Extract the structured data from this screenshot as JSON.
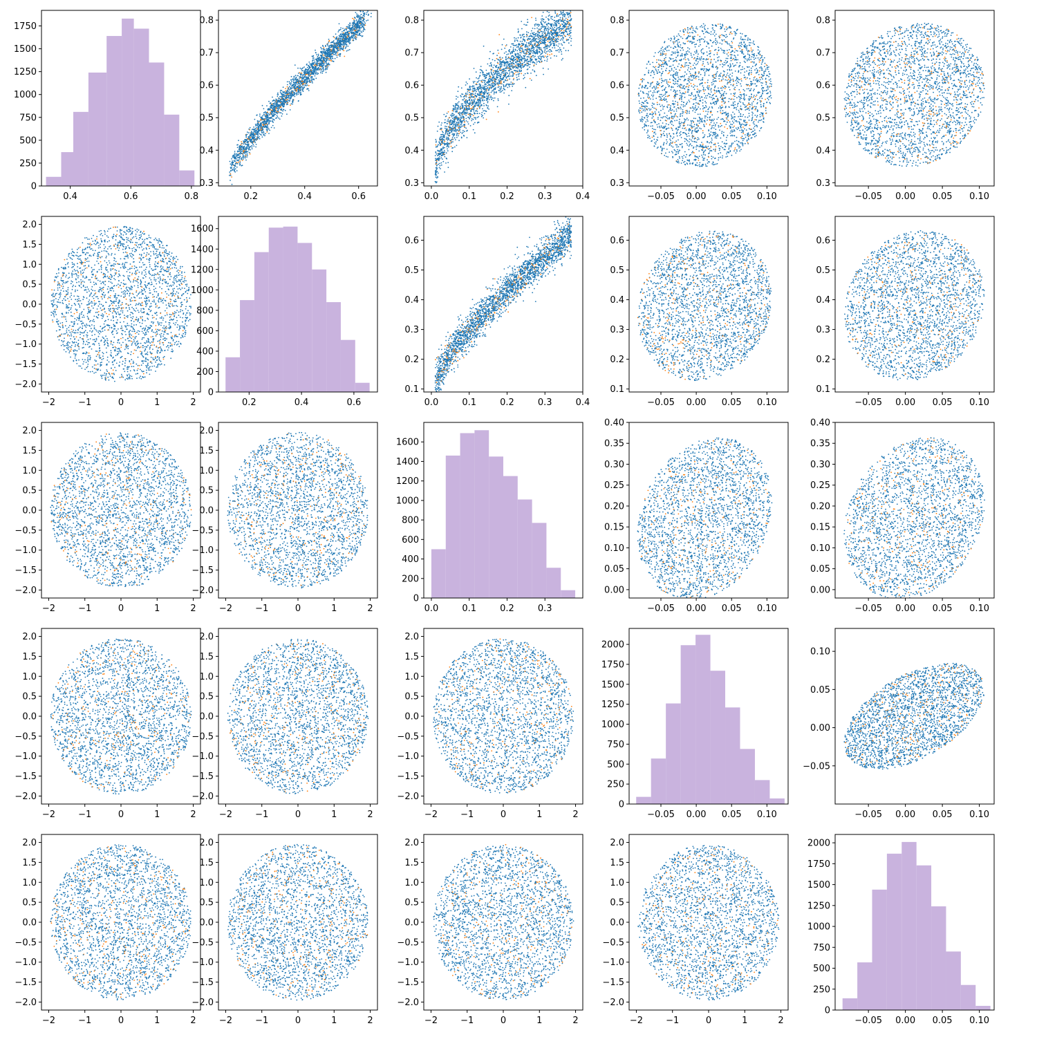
{
  "figure": {
    "colors": {
      "primary": "#1f77b4",
      "secondary": "#ff7f0e",
      "hist": "#c9b3de",
      "axes": "#000000"
    }
  },
  "chart_data": [
    {
      "type": "histogram",
      "row": 0,
      "col": 0,
      "xlim": [
        0.305,
        0.83
      ],
      "ylim": [
        0,
        1920
      ],
      "xticks": [
        0.4,
        0.6,
        0.8
      ],
      "xtick_labels": [
        "0.4",
        "0.6",
        "0.8"
      ],
      "yticks": [
        0,
        250,
        500,
        750,
        1000,
        1250,
        1500,
        1750
      ],
      "ytick_labels": [
        "0",
        "250",
        "500",
        "750",
        "1000",
        "1250",
        "1500",
        "1750"
      ],
      "bins": [
        0.32,
        0.37,
        0.41,
        0.46,
        0.52,
        0.57,
        0.61,
        0.66,
        0.71,
        0.76,
        0.81
      ],
      "values": [
        100,
        370,
        810,
        1240,
        1640,
        1830,
        1720,
        1350,
        780,
        170
      ]
    },
    {
      "type": "scatter",
      "row": 0,
      "col": 1,
      "xlim": [
        0.08,
        0.67
      ],
      "ylim": [
        0.29,
        0.83
      ],
      "xticks": [
        0.2,
        0.4,
        0.6
      ],
      "xtick_labels": [
        "0.2",
        "0.4",
        "0.6"
      ],
      "yticks": [
        0.3,
        0.4,
        0.5,
        0.6,
        0.7,
        0.8
      ],
      "ytick_labels": [
        "0.3",
        "0.4",
        "0.5",
        "0.6",
        "0.7",
        "0.8"
      ]
    },
    {
      "type": "scatter",
      "row": 0,
      "col": 2,
      "xlim": [
        -0.02,
        0.4
      ],
      "ylim": [
        0.29,
        0.83
      ],
      "xticks": [
        0.0,
        0.1,
        0.2,
        0.3,
        0.4
      ],
      "xtick_labels": [
        "0.0",
        "0.1",
        "0.2",
        "0.3",
        "0.4"
      ],
      "yticks": [
        0.3,
        0.4,
        0.5,
        0.6,
        0.7,
        0.8
      ],
      "ytick_labels": [
        "0.3",
        "0.4",
        "0.5",
        "0.6",
        "0.7",
        "0.8"
      ]
    },
    {
      "type": "scatter",
      "row": 0,
      "col": 3,
      "xlim": [
        -0.095,
        0.13
      ],
      "ylim": [
        0.29,
        0.83
      ],
      "xticks": [
        -0.05,
        0.0,
        0.05,
        0.1
      ],
      "xtick_labels": [
        "−0.05",
        "0.00",
        "0.05",
        "0.10"
      ],
      "yticks": [
        0.3,
        0.4,
        0.5,
        0.6,
        0.7,
        0.8
      ],
      "ytick_labels": [
        "0.3",
        "0.4",
        "0.5",
        "0.6",
        "0.7",
        "0.8"
      ]
    },
    {
      "type": "scatter",
      "row": 0,
      "col": 4,
      "xlim": [
        -0.095,
        0.12
      ],
      "ylim": [
        0.29,
        0.83
      ],
      "xticks": [
        -0.05,
        0.0,
        0.05,
        0.1
      ],
      "xtick_labels": [
        "−0.05",
        "0.00",
        "0.05",
        "0.10"
      ],
      "yticks": [
        0.3,
        0.4,
        0.5,
        0.6,
        0.7,
        0.8
      ],
      "ytick_labels": [
        "0.3",
        "0.4",
        "0.5",
        "0.6",
        "0.7",
        "0.8"
      ]
    },
    {
      "type": "scatter",
      "row": 1,
      "col": 0,
      "xlim": [
        -2.2,
        2.2
      ],
      "ylim": [
        -2.2,
        2.2
      ],
      "xticks": [
        -2,
        -1,
        0,
        1,
        2
      ],
      "xtick_labels": [
        "−2",
        "−1",
        "0",
        "1",
        "2"
      ],
      "yticks": [
        -2.0,
        -1.5,
        -1.0,
        -0.5,
        0.0,
        0.5,
        1.0,
        1.5,
        2.0
      ],
      "ytick_labels": [
        "−2.0",
        "−1.5",
        "−1.0",
        "−0.5",
        "0.0",
        "0.5",
        "1.0",
        "1.5",
        "2.0"
      ]
    },
    {
      "type": "histogram",
      "row": 1,
      "col": 1,
      "xlim": [
        0.083,
        0.69
      ],
      "ylim": [
        0,
        1720
      ],
      "xticks": [
        0.2,
        0.4,
        0.6
      ],
      "xtick_labels": [
        "0.2",
        "0.4",
        "0.6"
      ],
      "yticks": [
        0,
        200,
        400,
        600,
        800,
        1000,
        1200,
        1400,
        1600
      ],
      "ytick_labels": [
        "0",
        "200",
        "400",
        "600",
        "800",
        "1000",
        "1200",
        "1400",
        "1600"
      ],
      "bins": [
        0.11,
        0.165,
        0.22,
        0.275,
        0.33,
        0.385,
        0.44,
        0.495,
        0.55,
        0.605,
        0.66
      ],
      "values": [
        340,
        900,
        1370,
        1610,
        1620,
        1460,
        1200,
        880,
        510,
        90
      ]
    },
    {
      "type": "scatter",
      "row": 1,
      "col": 2,
      "xlim": [
        -0.02,
        0.4
      ],
      "ylim": [
        0.09,
        0.68
      ],
      "xticks": [
        0.0,
        0.1,
        0.2,
        0.3,
        0.4
      ],
      "xtick_labels": [
        "0.0",
        "0.1",
        "0.2",
        "0.3",
        "0.4"
      ],
      "yticks": [
        0.1,
        0.2,
        0.3,
        0.4,
        0.5,
        0.6
      ],
      "ytick_labels": [
        "0.1",
        "0.2",
        "0.3",
        "0.4",
        "0.5",
        "0.6"
      ]
    },
    {
      "type": "scatter",
      "row": 1,
      "col": 3,
      "xlim": [
        -0.095,
        0.13
      ],
      "ylim": [
        0.09,
        0.68
      ],
      "xticks": [
        -0.05,
        0.0,
        0.05,
        0.1
      ],
      "xtick_labels": [
        "−0.05",
        "0.00",
        "0.05",
        "0.10"
      ],
      "yticks": [
        0.1,
        0.2,
        0.3,
        0.4,
        0.5,
        0.6
      ],
      "ytick_labels": [
        "0.1",
        "0.2",
        "0.3",
        "0.4",
        "0.5",
        "0.6"
      ]
    },
    {
      "type": "scatter",
      "row": 1,
      "col": 4,
      "xlim": [
        -0.095,
        0.12
      ],
      "ylim": [
        0.09,
        0.68
      ],
      "xticks": [
        -0.05,
        0.0,
        0.05,
        0.1
      ],
      "xtick_labels": [
        "−0.05",
        "0.00",
        "0.05",
        "0.10"
      ],
      "yticks": [
        0.1,
        0.2,
        0.3,
        0.4,
        0.5,
        0.6
      ],
      "ytick_labels": [
        "0.1",
        "0.2",
        "0.3",
        "0.4",
        "0.5",
        "0.6"
      ]
    },
    {
      "type": "scatter",
      "row": 2,
      "col": 0,
      "xlim": [
        -2.2,
        2.2
      ],
      "ylim": [
        -2.2,
        2.2
      ],
      "xticks": [
        -2,
        -1,
        0,
        1,
        2
      ],
      "xtick_labels": [
        "−2",
        "−1",
        "0",
        "1",
        "2"
      ],
      "yticks": [
        -2.0,
        -1.5,
        -1.0,
        -0.5,
        0.0,
        0.5,
        1.0,
        1.5,
        2.0
      ],
      "ytick_labels": [
        "−2.0",
        "−1.5",
        "−1.0",
        "−0.5",
        "0.0",
        "0.5",
        "1.0",
        "1.5",
        "2.0"
      ]
    },
    {
      "type": "scatter",
      "row": 2,
      "col": 1,
      "xlim": [
        -2.2,
        2.2
      ],
      "ylim": [
        -2.2,
        2.2
      ],
      "xticks": [
        -2,
        -1,
        0,
        1,
        2
      ],
      "xtick_labels": [
        "−2",
        "−1",
        "0",
        "1",
        "2"
      ],
      "yticks": [
        -2.0,
        -1.5,
        -1.0,
        -0.5,
        0.0,
        0.5,
        1.0,
        1.5,
        2.0
      ],
      "ytick_labels": [
        "−2.0",
        "−1.5",
        "−1.0",
        "−0.5",
        "0.0",
        "0.5",
        "1.0",
        "1.5",
        "2.0"
      ]
    },
    {
      "type": "histogram",
      "row": 2,
      "col": 2,
      "xlim": [
        -0.02,
        0.4
      ],
      "ylim": [
        0,
        1800
      ],
      "xticks": [
        0.0,
        0.1,
        0.2,
        0.3
      ],
      "xtick_labels": [
        "0.0",
        "0.1",
        "0.2",
        "0.3"
      ],
      "yticks": [
        0,
        200,
        400,
        600,
        800,
        1000,
        1200,
        1400,
        1600
      ],
      "ytick_labels": [
        "0",
        "200",
        "400",
        "600",
        "800",
        "1000",
        "1200",
        "1400",
        "1600"
      ],
      "bins": [
        0.0,
        0.038,
        0.076,
        0.114,
        0.152,
        0.19,
        0.228,
        0.266,
        0.304,
        0.342,
        0.38
      ],
      "values": [
        500,
        1460,
        1690,
        1720,
        1450,
        1250,
        1010,
        770,
        310,
        80
      ]
    },
    {
      "type": "scatter",
      "row": 2,
      "col": 3,
      "xlim": [
        -0.095,
        0.13
      ],
      "ylim": [
        -0.02,
        0.4
      ],
      "xticks": [
        -0.05,
        0.0,
        0.05,
        0.1
      ],
      "xtick_labels": [
        "−0.05",
        "0.00",
        "0.05",
        "0.10"
      ],
      "yticks": [
        0.0,
        0.05,
        0.1,
        0.15,
        0.2,
        0.25,
        0.3,
        0.35,
        0.4
      ],
      "ytick_labels": [
        "0.00",
        "0.05",
        "0.10",
        "0.15",
        "0.20",
        "0.25",
        "0.30",
        "0.35",
        "0.40"
      ]
    },
    {
      "type": "scatter",
      "row": 2,
      "col": 4,
      "xlim": [
        -0.095,
        0.12
      ],
      "ylim": [
        -0.02,
        0.4
      ],
      "xticks": [
        -0.05,
        0.0,
        0.05,
        0.1
      ],
      "xtick_labels": [
        "−0.05",
        "0.00",
        "0.05",
        "0.10"
      ],
      "yticks": [
        0.0,
        0.05,
        0.1,
        0.15,
        0.2,
        0.25,
        0.3,
        0.35,
        0.4
      ],
      "ytick_labels": [
        "0.00",
        "0.05",
        "0.10",
        "0.15",
        "0.20",
        "0.25",
        "0.30",
        "0.35",
        "0.40"
      ]
    },
    {
      "type": "scatter",
      "row": 3,
      "col": 0,
      "xlim": [
        -2.2,
        2.2
      ],
      "ylim": [
        -2.2,
        2.2
      ],
      "xticks": [
        -2,
        -1,
        0,
        1,
        2
      ],
      "xtick_labels": [
        "−2",
        "−1",
        "0",
        "1",
        "2"
      ],
      "yticks": [
        -2.0,
        -1.5,
        -1.0,
        -0.5,
        0.0,
        0.5,
        1.0,
        1.5,
        2.0
      ],
      "ytick_labels": [
        "−2.0",
        "−1.5",
        "−1.0",
        "−0.5",
        "0.0",
        "0.5",
        "1.0",
        "1.5",
        "2.0"
      ]
    },
    {
      "type": "scatter",
      "row": 3,
      "col": 1,
      "xlim": [
        -2.2,
        2.2
      ],
      "ylim": [
        -2.2,
        2.2
      ],
      "xticks": [
        -2,
        -1,
        0,
        1,
        2
      ],
      "xtick_labels": [
        "−2",
        "−1",
        "0",
        "1",
        "2"
      ],
      "yticks": [
        -2.0,
        -1.5,
        -1.0,
        -0.5,
        0.0,
        0.5,
        1.0,
        1.5,
        2.0
      ],
      "ytick_labels": [
        "−2.0",
        "−1.5",
        "−1.0",
        "−0.5",
        "0.0",
        "0.5",
        "1.0",
        "1.5",
        "2.0"
      ]
    },
    {
      "type": "scatter",
      "row": 3,
      "col": 2,
      "xlim": [
        -2.2,
        2.2
      ],
      "ylim": [
        -2.2,
        2.2
      ],
      "xticks": [
        -2,
        -1,
        0,
        1,
        2
      ],
      "xtick_labels": [
        "−2",
        "−1",
        "0",
        "1",
        "2"
      ],
      "yticks": [
        -2.0,
        -1.5,
        -1.0,
        -0.5,
        0.0,
        0.5,
        1.0,
        1.5,
        2.0
      ],
      "ytick_labels": [
        "−2.0",
        "−1.5",
        "−1.0",
        "−0.5",
        "0.0",
        "0.5",
        "1.0",
        "1.5",
        "2.0"
      ]
    },
    {
      "type": "histogram",
      "row": 3,
      "col": 3,
      "xlim": [
        -0.095,
        0.13
      ],
      "ylim": [
        0,
        2200
      ],
      "xticks": [
        -0.05,
        0.0,
        0.05,
        0.1
      ],
      "xtick_labels": [
        "−0.05",
        "0.00",
        "0.05",
        "0.10"
      ],
      "yticks": [
        0,
        250,
        500,
        750,
        1000,
        1250,
        1500,
        1750,
        2000
      ],
      "ytick_labels": [
        "0",
        "250",
        "500",
        "750",
        "1000",
        "1250",
        "1500",
        "1750",
        "2000"
      ],
      "bins": [
        -0.085,
        -0.064,
        -0.043,
        -0.022,
        -0.001,
        0.02,
        0.041,
        0.062,
        0.083,
        0.104,
        0.125
      ],
      "values": [
        90,
        570,
        1260,
        1990,
        2120,
        1670,
        1210,
        690,
        300,
        70
      ]
    },
    {
      "type": "scatter",
      "row": 3,
      "col": 4,
      "xlim": [
        -0.095,
        0.12
      ],
      "ylim": [
        -0.1,
        0.13
      ],
      "xticks": [
        -0.05,
        0.0,
        0.05,
        0.1
      ],
      "xtick_labels": [
        "−0.05",
        "0.00",
        "0.05",
        "0.10"
      ],
      "yticks": [
        -0.05,
        0.0,
        0.05,
        0.1
      ],
      "ytick_labels": [
        "−0.05",
        "0.00",
        "0.05",
        "0.10"
      ]
    },
    {
      "type": "scatter",
      "row": 4,
      "col": 0,
      "xlim": [
        -2.2,
        2.2
      ],
      "ylim": [
        -2.2,
        2.2
      ],
      "xticks": [
        -2,
        -1,
        0,
        1,
        2
      ],
      "xtick_labels": [
        "−2",
        "−1",
        "0",
        "1",
        "2"
      ],
      "yticks": [
        -2.0,
        -1.5,
        -1.0,
        -0.5,
        0.0,
        0.5,
        1.0,
        1.5,
        2.0
      ],
      "ytick_labels": [
        "−2.0",
        "−1.5",
        "−1.0",
        "−0.5",
        "0.0",
        "0.5",
        "1.0",
        "1.5",
        "2.0"
      ]
    },
    {
      "type": "scatter",
      "row": 4,
      "col": 1,
      "xlim": [
        -2.2,
        2.2
      ],
      "ylim": [
        -2.2,
        2.2
      ],
      "xticks": [
        -2,
        -1,
        0,
        1,
        2
      ],
      "xtick_labels": [
        "−2",
        "−1",
        "0",
        "1",
        "2"
      ],
      "yticks": [
        -2.0,
        -1.5,
        -1.0,
        -0.5,
        0.0,
        0.5,
        1.0,
        1.5,
        2.0
      ],
      "ytick_labels": [
        "−2.0",
        "−1.5",
        "−1.0",
        "−0.5",
        "0.0",
        "0.5",
        "1.0",
        "1.5",
        "2.0"
      ]
    },
    {
      "type": "scatter",
      "row": 4,
      "col": 2,
      "xlim": [
        -2.2,
        2.2
      ],
      "ylim": [
        -2.2,
        2.2
      ],
      "xticks": [
        -2,
        -1,
        0,
        1,
        2
      ],
      "xtick_labels": [
        "−2",
        "−1",
        "0",
        "1",
        "2"
      ],
      "yticks": [
        -2.0,
        -1.5,
        -1.0,
        -0.5,
        0.0,
        0.5,
        1.0,
        1.5,
        2.0
      ],
      "ytick_labels": [
        "−2.0",
        "−1.5",
        "−1.0",
        "−0.5",
        "0.0",
        "0.5",
        "1.0",
        "1.5",
        "2.0"
      ]
    },
    {
      "type": "scatter",
      "row": 4,
      "col": 3,
      "xlim": [
        -2.2,
        2.2
      ],
      "ylim": [
        -2.2,
        2.2
      ],
      "xticks": [
        -2,
        -1,
        0,
        1,
        2
      ],
      "xtick_labels": [
        "−2",
        "−1",
        "0",
        "1",
        "2"
      ],
      "yticks": [
        -2.0,
        -1.5,
        -1.0,
        -0.5,
        0.0,
        0.5,
        1.0,
        1.5,
        2.0
      ],
      "ytick_labels": [
        "−2.0",
        "−1.5",
        "−1.0",
        "−0.5",
        "0.0",
        "0.5",
        "1.0",
        "1.5",
        "2.0"
      ]
    },
    {
      "type": "histogram",
      "row": 4,
      "col": 4,
      "xlim": [
        -0.095,
        0.12
      ],
      "ylim": [
        0,
        2100
      ],
      "xticks": [
        -0.05,
        0.0,
        0.05,
        0.1
      ],
      "xtick_labels": [
        "−0.05",
        "0.00",
        "0.05",
        "0.10"
      ],
      "yticks": [
        0,
        250,
        500,
        750,
        1000,
        1250,
        1500,
        1750,
        2000
      ],
      "ytick_labels": [
        "0",
        "250",
        "500",
        "750",
        "1000",
        "1250",
        "1500",
        "1750",
        "2000"
      ],
      "bins": [
        -0.085,
        -0.065,
        -0.045,
        -0.025,
        -0.005,
        0.015,
        0.035,
        0.055,
        0.075,
        0.095,
        0.115
      ],
      "values": [
        140,
        570,
        1440,
        1870,
        2010,
        1730,
        1240,
        700,
        300,
        50
      ]
    }
  ]
}
